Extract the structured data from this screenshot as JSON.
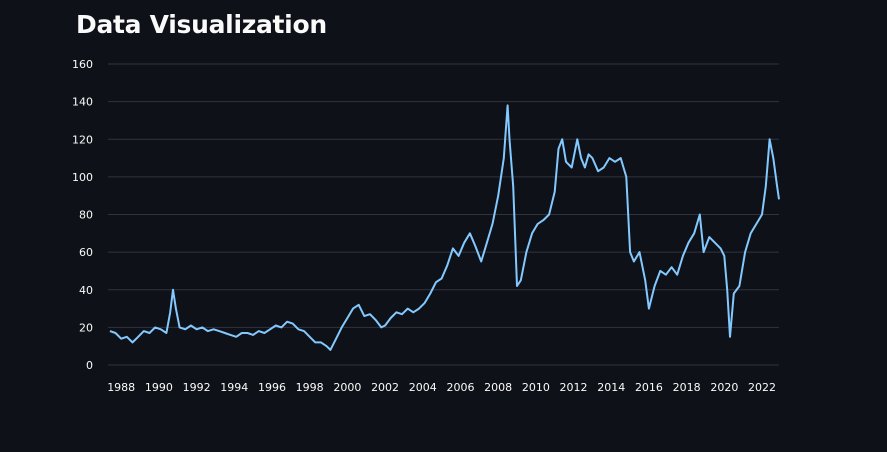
{
  "page": {
    "title": "Data Visualization"
  },
  "colors": {
    "background": "#0e1117",
    "line": "#83c9ff",
    "grid": "#31333f",
    "text": "#fafafa"
  },
  "chart_data": {
    "type": "line",
    "title": "",
    "xlabel": "",
    "ylabel": "",
    "grid": true,
    "xlim": [
      1987.3,
      2022.9
    ],
    "ylim": [
      0,
      160
    ],
    "x_ticks": [
      1988,
      1990,
      1992,
      1994,
      1996,
      1998,
      2000,
      2002,
      2004,
      2006,
      2008,
      2010,
      2012,
      2014,
      2016,
      2018,
      2020,
      2022
    ],
    "y_ticks": [
      0,
      20,
      40,
      60,
      80,
      100,
      120,
      140,
      160
    ],
    "series": [
      {
        "x": [
          1987.4,
          1987.7,
          1988.0,
          1988.3,
          1988.6,
          1988.9,
          1989.2,
          1989.5,
          1989.8,
          1990.1,
          1990.4,
          1990.6,
          1990.75,
          1990.9,
          1991.1,
          1991.4,
          1991.7,
          1992.0,
          1992.3,
          1992.6,
          1992.9,
          1993.2,
          1993.5,
          1993.8,
          1994.1,
          1994.4,
          1994.7,
          1995.0,
          1995.3,
          1995.6,
          1995.9,
          1996.2,
          1996.5,
          1996.8,
          1997.1,
          1997.4,
          1997.7,
          1998.0,
          1998.3,
          1998.6,
          1998.9,
          1999.1,
          1999.4,
          1999.7,
          2000.0,
          2000.3,
          2000.6,
          2000.9,
          2001.2,
          2001.5,
          2001.8,
          2002.0,
          2002.3,
          2002.6,
          2002.9,
          2003.2,
          2003.5,
          2003.8,
          2004.1,
          2004.4,
          2004.7,
          2005.0,
          2005.3,
          2005.6,
          2005.9,
          2006.2,
          2006.5,
          2006.8,
          2007.1,
          2007.4,
          2007.7,
          2008.0,
          2008.3,
          2008.5,
          2008.6,
          2008.8,
          2009.0,
          2009.2,
          2009.5,
          2009.8,
          2010.1,
          2010.4,
          2010.7,
          2011.0,
          2011.2,
          2011.4,
          2011.6,
          2011.9,
          2012.2,
          2012.4,
          2012.6,
          2012.8,
          2013.0,
          2013.3,
          2013.6,
          2013.9,
          2014.2,
          2014.5,
          2014.8,
          2015.0,
          2015.2,
          2015.5,
          2015.8,
          2016.0,
          2016.3,
          2016.6,
          2016.9,
          2017.2,
          2017.5,
          2017.8,
          2018.1,
          2018.4,
          2018.7,
          2018.9,
          2019.2,
          2019.5,
          2019.8,
          2020.0,
          2020.15,
          2020.3,
          2020.5,
          2020.8,
          2021.1,
          2021.4,
          2021.7,
          2022.0,
          2022.2,
          2022.4,
          2022.6,
          2022.8,
          2022.9
        ],
        "values": [
          18,
          17,
          14,
          15,
          12,
          15,
          18,
          17,
          20,
          19,
          17,
          28,
          40,
          30,
          20,
          19,
          21,
          19,
          20,
          18,
          19,
          18,
          17,
          16,
          15,
          17,
          17,
          16,
          18,
          17,
          19,
          21,
          20,
          23,
          22,
          19,
          18,
          15,
          12,
          12,
          10,
          8,
          14,
          20,
          25,
          30,
          32,
          26,
          27,
          24,
          20,
          21,
          25,
          28,
          27,
          30,
          28,
          30,
          33,
          38,
          44,
          46,
          53,
          62,
          58,
          65,
          70,
          63,
          55,
          65,
          75,
          90,
          110,
          138,
          120,
          95,
          42,
          45,
          60,
          70,
          75,
          77,
          80,
          92,
          115,
          120,
          108,
          105,
          120,
          110,
          105,
          112,
          110,
          103,
          105,
          110,
          108,
          110,
          100,
          60,
          55,
          60,
          45,
          30,
          42,
          50,
          48,
          52,
          48,
          58,
          65,
          70,
          80,
          60,
          68,
          65,
          62,
          58,
          40,
          15,
          38,
          42,
          60,
          70,
          75,
          80,
          95,
          120,
          110,
          95,
          88
        ]
      }
    ]
  }
}
